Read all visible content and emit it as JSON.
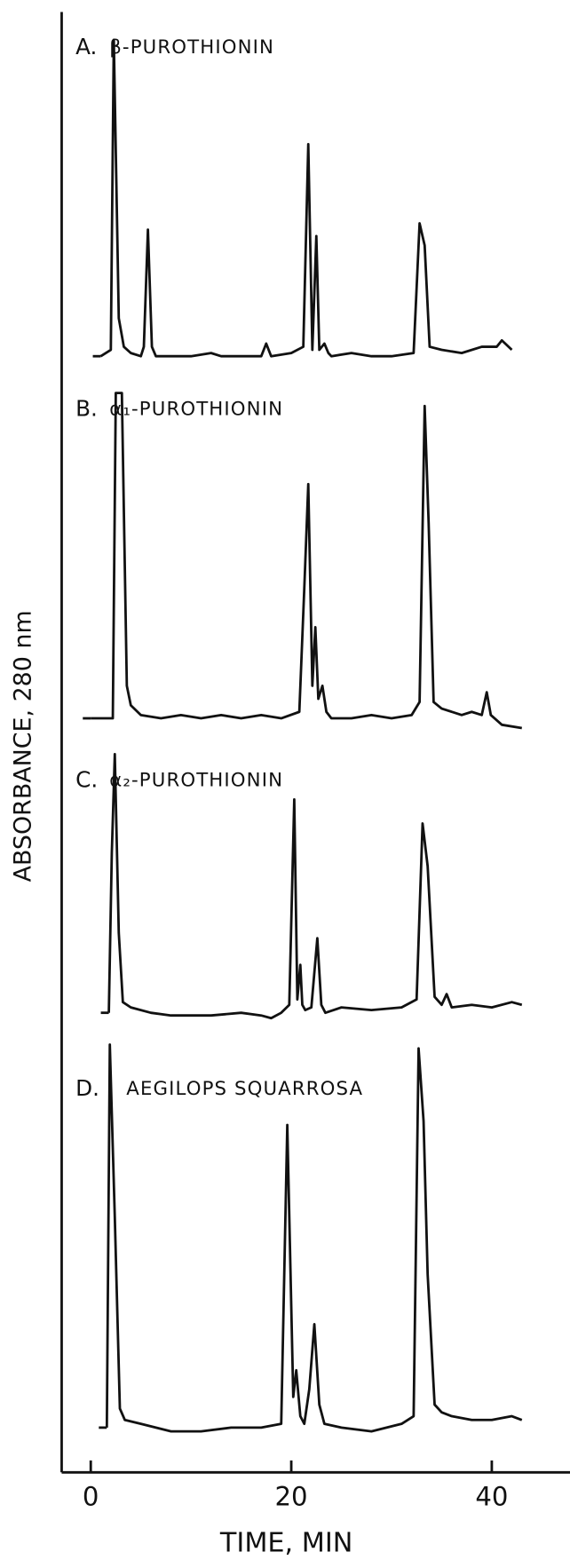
{
  "chart_data": {
    "type": "line",
    "xlabel": "TIME, MIN",
    "ylabel": "ABSORBANCE, 280 nm",
    "xlim": [
      -2.9,
      47.8
    ],
    "xticks": [
      0,
      20,
      40
    ],
    "ylim": [
      0,
      100
    ],
    "color": "#111111",
    "series": [
      {
        "label": "A.",
        "name": "β-PUROTHIONIN",
        "x": [
          1,
          2,
          2.3,
          2.8,
          3.3,
          4,
          5,
          5.3,
          5.7,
          6.1,
          6.5,
          8,
          10,
          12,
          13,
          15,
          17,
          17.5,
          18,
          20,
          21.2,
          21.7,
          22.1,
          22.5,
          22.8,
          23.3,
          23.7,
          24,
          26,
          28,
          30,
          32.2,
          32.8,
          33.3,
          33.8,
          35,
          37,
          39,
          40.5,
          41,
          42
        ],
        "values": [
          0,
          2,
          100,
          12,
          3,
          1,
          0,
          3,
          40,
          3,
          0,
          0,
          0,
          1,
          0,
          0,
          0,
          4,
          0,
          1,
          3,
          67,
          2,
          38,
          2,
          4,
          1,
          0,
          1,
          0,
          0,
          1,
          42,
          35,
          3,
          2,
          1,
          3,
          3,
          5,
          2
        ]
      },
      {
        "label": "B.",
        "name": "α₁-PUROTHIONIN",
        "x": [
          0,
          2.2,
          2.5,
          3.1,
          3.6,
          4,
          5,
          7,
          9,
          11,
          13,
          15,
          17,
          19,
          20.8,
          21.3,
          21.7,
          22.1,
          22.4,
          22.7,
          23.1,
          23.5,
          24,
          26,
          28,
          30,
          32,
          32.8,
          33.3,
          33.7,
          34.2,
          35,
          37,
          38,
          39,
          39.5,
          39.9,
          41,
          43
        ],
        "values": [
          0,
          0,
          100,
          100,
          10,
          4,
          1,
          0,
          1,
          0,
          1,
          0,
          1,
          0,
          2,
          40,
          72,
          10,
          28,
          6,
          10,
          2,
          0,
          0,
          1,
          0,
          1,
          5,
          96,
          60,
          5,
          3,
          1,
          2,
          1,
          8,
          1,
          -2,
          -3
        ]
      },
      {
        "label": "C.",
        "name": "α₂-PUROTHIONIN",
        "x": [
          1.8,
          2.1,
          2.4,
          2.8,
          3.2,
          4,
          6,
          8,
          10,
          12,
          15,
          17,
          18,
          19,
          19.8,
          20.3,
          20.6,
          20.9,
          21.1,
          21.4,
          22,
          22.6,
          23,
          23.4,
          25,
          28,
          31,
          32.5,
          33.1,
          33.6,
          34.3,
          35,
          35.5,
          36,
          38,
          40,
          42,
          43
        ],
        "values": [
          0,
          60,
          97,
          30,
          4,
          2,
          0,
          -1,
          -1,
          -1,
          0,
          -1,
          -2,
          0,
          3,
          80,
          5,
          18,
          3,
          1,
          2,
          28,
          3,
          0,
          2,
          1,
          2,
          5,
          71,
          55,
          6,
          3,
          7,
          2,
          3,
          2,
          4,
          3
        ]
      },
      {
        "label": "D.",
        "name": "AEGILOPS SQUARROSA",
        "x": [
          1.6,
          1.9,
          2.4,
          2.9,
          3.4,
          5,
          8,
          11,
          14,
          17,
          19,
          19.6,
          20.2,
          20.5,
          20.9,
          21.3,
          21.8,
          22.3,
          22.8,
          23.3,
          25,
          28,
          31,
          32.2,
          32.7,
          33.2,
          33.6,
          34.3,
          35,
          36,
          38,
          40,
          42,
          43
        ],
        "values": [
          0,
          100,
          55,
          5,
          2,
          1,
          -1,
          -1,
          0,
          0,
          1,
          79,
          8,
          15,
          3,
          1,
          10,
          27,
          6,
          1,
          0,
          -1,
          1,
          3,
          99,
          80,
          40,
          6,
          4,
          3,
          2,
          2,
          3,
          2
        ]
      }
    ]
  }
}
